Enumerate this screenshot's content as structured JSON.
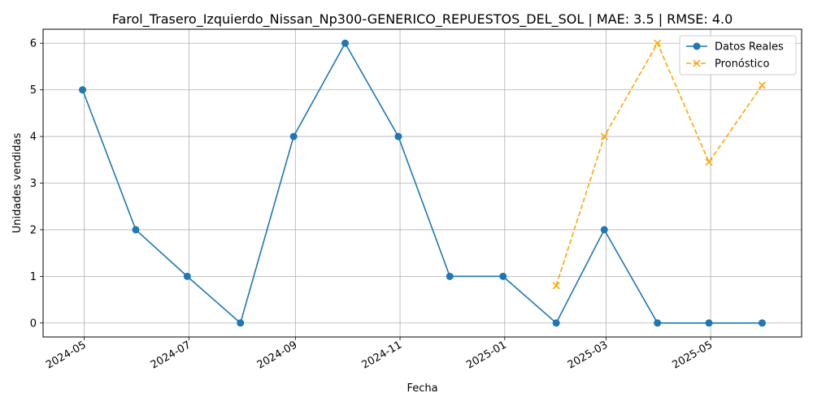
{
  "chart_data": {
    "type": "line",
    "title": "Farol_Trasero_Izquierdo_Nissan_Np300-GENERICO_REPUESTOS_DEL_SOL | MAE: 3.5 | RMSE: 4.0",
    "xlabel": "Fecha",
    "ylabel": "Unidades vendidas",
    "xlim": [
      "2024-04-07",
      "2025-06-23"
    ],
    "ylim": [
      -0.3,
      6.3
    ],
    "x_ticks": [
      "2024-05",
      "2024-07",
      "2024-09",
      "2024-11",
      "2025-01",
      "2025-03",
      "2025-05"
    ],
    "x_tick_dates": [
      "2024-05-01",
      "2024-07-01",
      "2024-09-01",
      "2024-11-01",
      "2025-01-01",
      "2025-03-01",
      "2025-05-01"
    ],
    "y_ticks": [
      "0",
      "1",
      "2",
      "3",
      "4",
      "5",
      "6"
    ],
    "grid": true,
    "legend_position": "top-right",
    "series": [
      {
        "name": "Datos Reales",
        "color": "#1f77b4",
        "line_style": "solid",
        "marker": "circle",
        "x": [
          "2024-04-30",
          "2024-05-31",
          "2024-06-30",
          "2024-07-31",
          "2024-08-31",
          "2024-09-30",
          "2024-10-31",
          "2024-11-30",
          "2024-12-31",
          "2025-01-31",
          "2025-02-28",
          "2025-03-31",
          "2025-04-30",
          "2025-05-31"
        ],
        "values": [
          5,
          2,
          1,
          0,
          4,
          6,
          4,
          1,
          1,
          0,
          2,
          0,
          0,
          0
        ]
      },
      {
        "name": "Pronóstico",
        "color": "#ffa500",
        "line_style": "dashed",
        "marker": "x",
        "x": [
          "2025-01-31",
          "2025-02-28",
          "2025-03-31",
          "2025-04-30",
          "2025-05-31"
        ],
        "values": [
          0.8,
          4.0,
          6.0,
          3.45,
          5.1
        ]
      }
    ]
  }
}
